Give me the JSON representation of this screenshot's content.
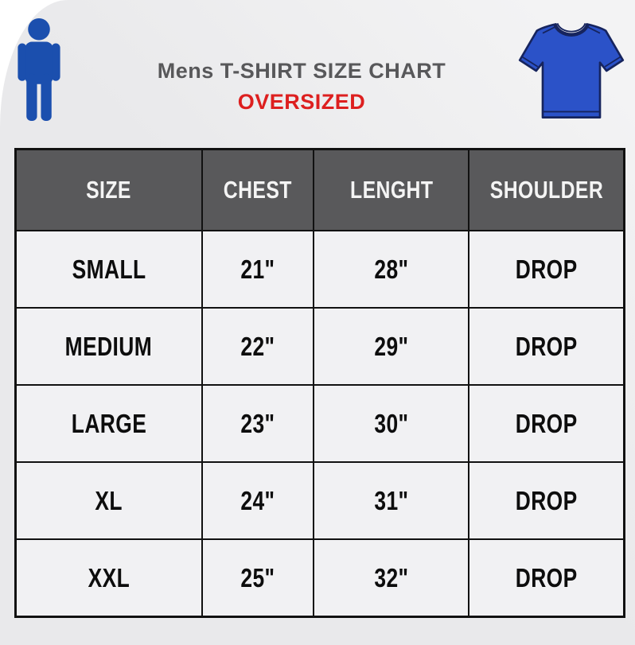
{
  "title": "Mens T-SHIRT SIZE CHART",
  "subtitle": "OVERSIZED",
  "icons": {
    "person": "blue man pictogram",
    "tshirt": "blue oversized t-shirt"
  },
  "colors": {
    "page_bg": "#ebebed",
    "cell_bg": "#f1f1f3",
    "header_bg": "#59595b",
    "border": "#111111",
    "title_gray": "#58585a",
    "accent_red": "#dd1f1f",
    "person_blue": "#1b4fae",
    "shirt_blue": "#2b52c8",
    "shirt_outline": "#16245e"
  },
  "chart_data": {
    "type": "table",
    "title": "Mens T-SHIRT SIZE CHART",
    "subtitle": "OVERSIZED",
    "columns": [
      "SIZE",
      "CHEST",
      "LENGHT",
      "SHOULDER"
    ],
    "rows": [
      [
        "SMALL",
        "21\"",
        "28\"",
        "DROP"
      ],
      [
        "MEDIUM",
        "22\"",
        "29\"",
        "DROP"
      ],
      [
        "LARGE",
        "23\"",
        "30\"",
        "DROP"
      ],
      [
        "XL",
        "24\"",
        "31\"",
        "DROP"
      ],
      [
        "XXL",
        "25\"",
        "32\"",
        "DROP"
      ]
    ]
  }
}
